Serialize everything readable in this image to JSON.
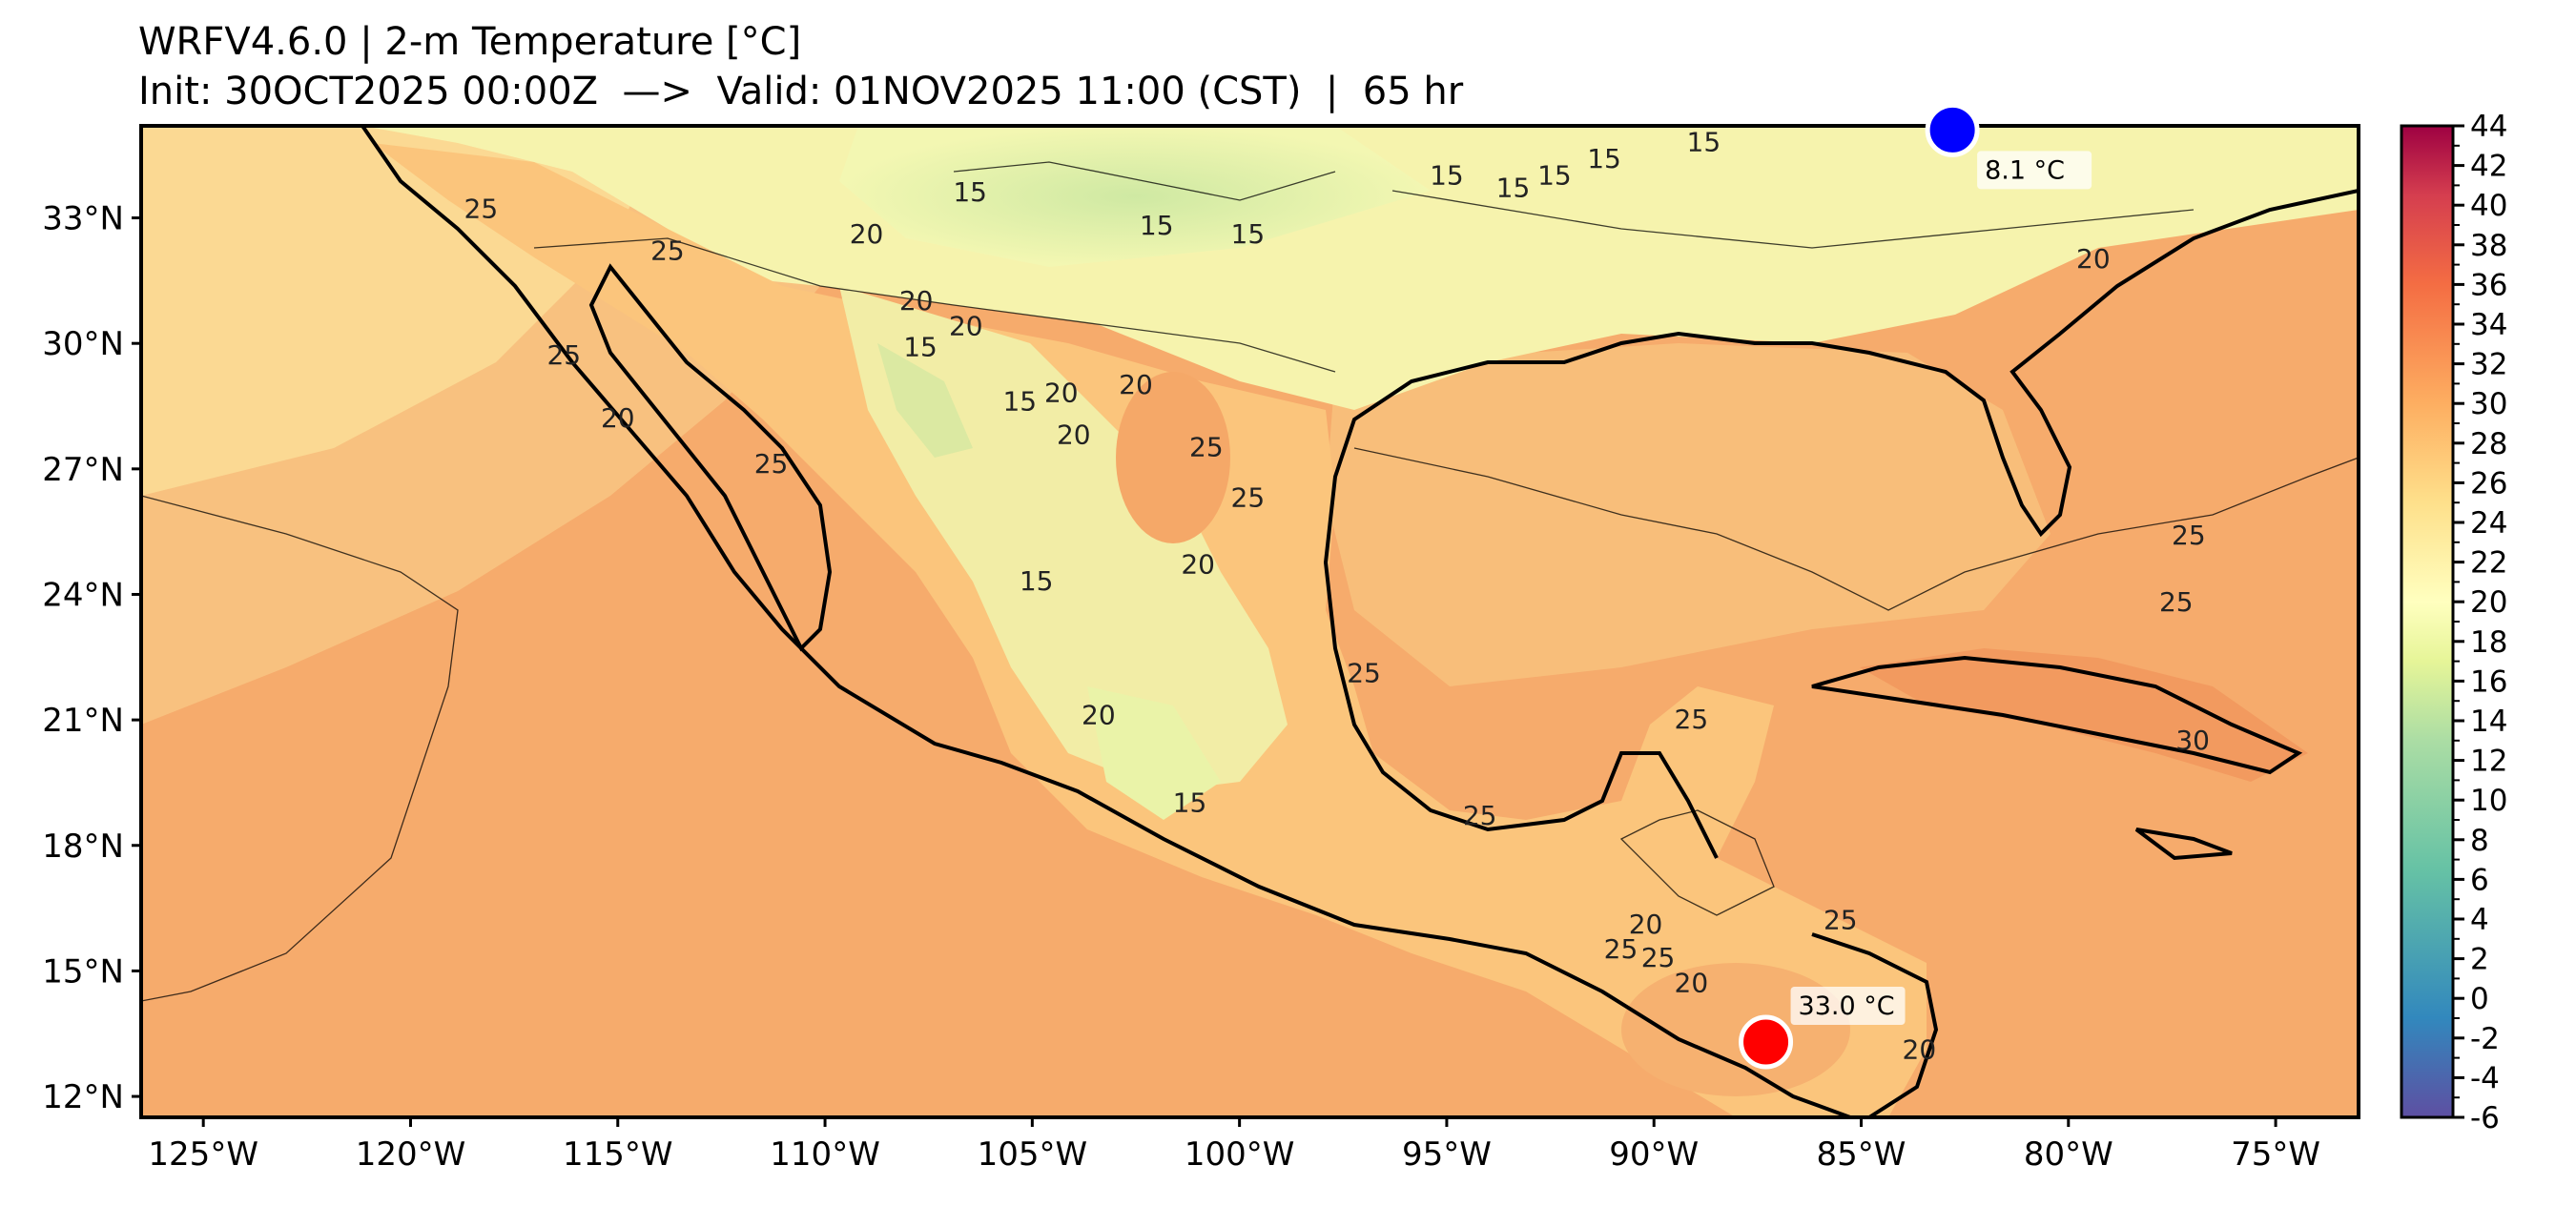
{
  "header": {
    "title": "WRFV4.6.0 | 2-m Temperature [°C]",
    "subtitle": "Init: 30OCT2025 00:00Z  —>  Valid: 01NOV2025 11:00 (CST)  |  65 hr"
  },
  "map": {
    "lon_range": [
      -126.5,
      -73.0
    ],
    "lat_range": [
      11.5,
      35.2
    ],
    "lon_ticks": [
      {
        "value": -125,
        "label": "125°W"
      },
      {
        "value": -120,
        "label": "120°W"
      },
      {
        "value": -115,
        "label": "115°W"
      },
      {
        "value": -110,
        "label": "110°W"
      },
      {
        "value": -105,
        "label": "105°W"
      },
      {
        "value": -100,
        "label": "100°W"
      },
      {
        "value": -95,
        "label": "95°W"
      },
      {
        "value": -90,
        "label": "90°W"
      },
      {
        "value": -85,
        "label": "85°W"
      },
      {
        "value": -80,
        "label": "80°W"
      },
      {
        "value": -75,
        "label": "75°W"
      }
    ],
    "lat_ticks": [
      {
        "value": 12,
        "label": "12°N"
      },
      {
        "value": 15,
        "label": "15°N"
      },
      {
        "value": 18,
        "label": "18°N"
      },
      {
        "value": 21,
        "label": "21°N"
      },
      {
        "value": 24,
        "label": "24°N"
      },
      {
        "value": 27,
        "label": "27°N"
      },
      {
        "value": 30,
        "label": "30°N"
      },
      {
        "value": 33,
        "label": "33°N"
      }
    ],
    "contour_labels": [
      {
        "text": "15",
        "lon": -106.5,
        "lat": 33.4
      },
      {
        "text": "15",
        "lon": -102.0,
        "lat": 32.6
      },
      {
        "text": "15",
        "lon": -99.8,
        "lat": 32.4
      },
      {
        "text": "15",
        "lon": -95.0,
        "lat": 33.8
      },
      {
        "text": "15",
        "lon": -93.4,
        "lat": 33.5
      },
      {
        "text": "15",
        "lon": -92.4,
        "lat": 33.8
      },
      {
        "text": "15",
        "lon": -91.2,
        "lat": 34.2
      },
      {
        "text": "15",
        "lon": -88.8,
        "lat": 34.6
      },
      {
        "text": "20",
        "lon": -79.4,
        "lat": 31.8
      },
      {
        "text": "20",
        "lon": -109.0,
        "lat": 32.4
      },
      {
        "text": "20",
        "lon": -107.8,
        "lat": 30.8
      },
      {
        "text": "20",
        "lon": -106.6,
        "lat": 30.2
      },
      {
        "text": "15",
        "lon": -107.7,
        "lat": 29.7
      },
      {
        "text": "15",
        "lon": -105.3,
        "lat": 28.4
      },
      {
        "text": "20",
        "lon": -102.5,
        "lat": 28.8
      },
      {
        "text": "20",
        "lon": -104.0,
        "lat": 27.6
      },
      {
        "text": "20",
        "lon": -104.3,
        "lat": 28.6
      },
      {
        "text": "25",
        "lon": -100.8,
        "lat": 27.3
      },
      {
        "text": "25",
        "lon": -99.8,
        "lat": 26.1
      },
      {
        "text": "25",
        "lon": -118.3,
        "lat": 33.0
      },
      {
        "text": "25",
        "lon": -113.8,
        "lat": 32.0
      },
      {
        "text": "25",
        "lon": -116.3,
        "lat": 29.5
      },
      {
        "text": "20",
        "lon": -115.0,
        "lat": 28.0
      },
      {
        "text": "25",
        "lon": -111.3,
        "lat": 26.9
      },
      {
        "text": "15",
        "lon": -104.9,
        "lat": 24.1
      },
      {
        "text": "20",
        "lon": -101.0,
        "lat": 24.5
      },
      {
        "text": "20",
        "lon": -103.4,
        "lat": 20.9
      },
      {
        "text": "15",
        "lon": -101.2,
        "lat": 18.8
      },
      {
        "text": "25",
        "lon": -97.0,
        "lat": 21.9
      },
      {
        "text": "25",
        "lon": -94.2,
        "lat": 18.5
      },
      {
        "text": "25",
        "lon": -89.1,
        "lat": 20.8
      },
      {
        "text": "20",
        "lon": -90.2,
        "lat": 15.9
      },
      {
        "text": "25",
        "lon": -90.8,
        "lat": 15.3
      },
      {
        "text": "25",
        "lon": -89.9,
        "lat": 15.1
      },
      {
        "text": "20",
        "lon": -89.1,
        "lat": 14.5
      },
      {
        "text": "25",
        "lon": -85.5,
        "lat": 16.0
      },
      {
        "text": "20",
        "lon": -83.6,
        "lat": 12.9
      },
      {
        "text": "25",
        "lon": -77.1,
        "lat": 25.2
      },
      {
        "text": "25",
        "lon": -77.4,
        "lat": 23.6
      },
      {
        "text": "30",
        "lon": -77.0,
        "lat": 20.3
      }
    ],
    "markers": [
      {
        "kind": "max",
        "label": "33.0 °C",
        "lon": -87.3,
        "lat": 13.3,
        "color": "#ff0000"
      },
      {
        "kind": "min",
        "label": "8.1 °C",
        "lon": -82.8,
        "lat": 35.1,
        "color": "#0000ff"
      }
    ]
  },
  "colorbar": {
    "min": -6,
    "max": 44,
    "tick_labels": [
      "-6",
      "-4",
      "-2",
      "0",
      "2",
      "4",
      "6",
      "8",
      "10",
      "12",
      "14",
      "16",
      "18",
      "20",
      "22",
      "24",
      "26",
      "28",
      "30",
      "32",
      "34",
      "36",
      "38",
      "40",
      "42",
      "44"
    ]
  },
  "colors": {
    "ocean_warm": "#f4a366",
    "land_base": "#fcc97f",
    "cool_land": "#eef6a9",
    "coast": "#000000"
  }
}
